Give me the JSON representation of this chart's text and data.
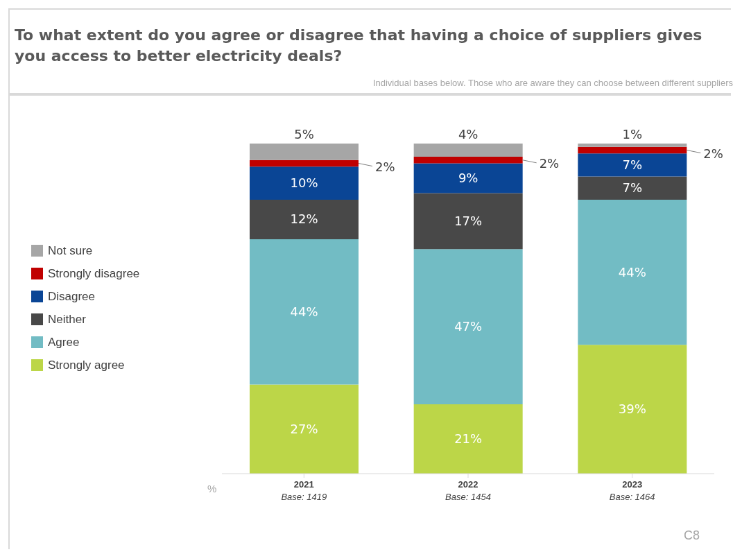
{
  "chart_data": {
    "type": "bar",
    "title": "To what extent do you agree or disagree that having a choice of suppliers gives you access to better electricity deals?",
    "subtitle": "Individual bases below. Those who are aware they can choose between different suppliers",
    "ylabel": "%",
    "categories": [
      "2021\nBase: 1419",
      "2022\nBase: 1454",
      "2023\nBase: 1464"
    ],
    "stacked": true,
    "legend": "left",
    "annotations": [
      "C8"
    ],
    "series": [
      {
        "name": "Strongly agree",
        "color": "#bcd648",
        "values": [
          27,
          21,
          39
        ],
        "value_labels": [
          "27%",
          "21%",
          "39%"
        ]
      },
      {
        "name": "Agree",
        "color": "#72bcc4",
        "values": [
          44,
          47,
          44
        ],
        "value_labels": [
          "44%",
          "47%",
          "44%"
        ]
      },
      {
        "name": "Neither",
        "color": "#484848",
        "values": [
          12,
          17,
          7
        ],
        "value_labels": [
          "12%",
          "17%",
          "7%"
        ]
      },
      {
        "name": "Disagree",
        "color": "#0a4595",
        "values": [
          10,
          9,
          7
        ],
        "value_labels": [
          "10%",
          "9%",
          "7%"
        ]
      },
      {
        "name": "Strongly disagree",
        "color": "#c00000",
        "values": [
          2,
          2,
          2
        ],
        "value_labels": [
          "2%",
          "2%",
          "2%"
        ]
      },
      {
        "name": "Not sure",
        "color": "#a6a6a6",
        "values": [
          5,
          4,
          1
        ],
        "value_labels": [
          "5%",
          "4%",
          "1%"
        ]
      }
    ]
  }
}
